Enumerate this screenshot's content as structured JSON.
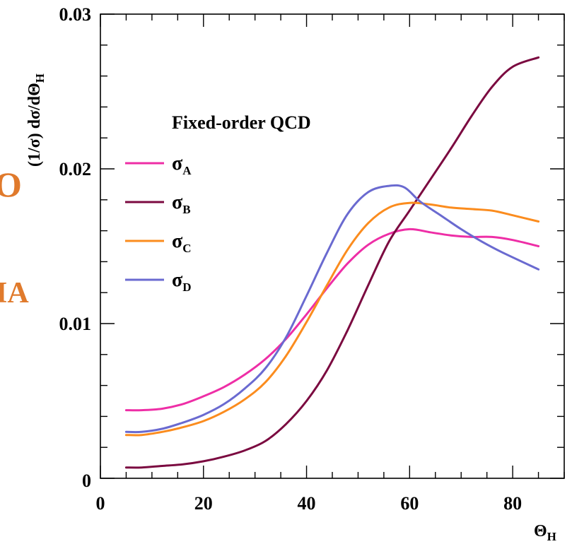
{
  "chart_data": {
    "type": "line",
    "title": "",
    "xlabel": {
      "main": "Θ",
      "sub": "H"
    },
    "ylabel": {
      "main": "(1/σ) dσ/dΘ",
      "sub": "H"
    },
    "xlim": [
      0,
      90
    ],
    "ylim": [
      0,
      0.03
    ],
    "x_ticks": [
      {
        "value": 0,
        "label": "0"
      },
      {
        "value": 20,
        "label": "20"
      },
      {
        "value": 40,
        "label": "40"
      },
      {
        "value": 60,
        "label": "60"
      },
      {
        "value": 80,
        "label": "80"
      }
    ],
    "y_ticks": [
      {
        "value": 0,
        "label": "0"
      },
      {
        "value": 0.01,
        "label": "0.01"
      },
      {
        "value": 0.02,
        "label": "0.02"
      },
      {
        "value": 0.03,
        "label": "0.03"
      }
    ],
    "grid": false,
    "legend": {
      "title": "Fixed-order QCD",
      "placement": "upper-left"
    },
    "series": [
      {
        "name": "σ",
        "sub": "A",
        "color": "#ee2ea6",
        "x": [
          5,
          8,
          12,
          16,
          20,
          24,
          28,
          32,
          36,
          40,
          44,
          48,
          52,
          56,
          60,
          64,
          68,
          72,
          76,
          80,
          85
        ],
        "y": [
          0.0044,
          0.0044,
          0.0045,
          0.0048,
          0.0053,
          0.0059,
          0.0067,
          0.0077,
          0.009,
          0.0106,
          0.0123,
          0.0139,
          0.0151,
          0.0158,
          0.0161,
          0.0159,
          0.0157,
          0.0156,
          0.0156,
          0.0154,
          0.015
        ]
      },
      {
        "name": "σ",
        "sub": "B",
        "color": "#7b0a40",
        "x": [
          5,
          8,
          12,
          16,
          20,
          24,
          28,
          32,
          36,
          40,
          44,
          48,
          52,
          56,
          60,
          64,
          68,
          72,
          76,
          80,
          85
        ],
        "y": [
          0.0007,
          0.0007,
          0.0008,
          0.0009,
          0.0011,
          0.0014,
          0.0018,
          0.0024,
          0.0035,
          0.005,
          0.007,
          0.0096,
          0.0125,
          0.0153,
          0.0173,
          0.0193,
          0.0213,
          0.0234,
          0.0253,
          0.0266,
          0.0272
        ]
      },
      {
        "name": "σ",
        "sub": "C",
        "color": "#fb8c1e",
        "x": [
          5,
          8,
          12,
          16,
          20,
          24,
          28,
          32,
          36,
          40,
          44,
          48,
          52,
          56,
          60,
          64,
          68,
          72,
          76,
          80,
          85
        ],
        "y": [
          0.0028,
          0.0028,
          0.003,
          0.0033,
          0.0037,
          0.0043,
          0.0051,
          0.0062,
          0.0079,
          0.0101,
          0.0125,
          0.0148,
          0.0165,
          0.0175,
          0.0178,
          0.0177,
          0.0175,
          0.0174,
          0.0173,
          0.017,
          0.0166
        ]
      },
      {
        "name": "σ",
        "sub": "D",
        "color": "#6a6ad0",
        "x": [
          5,
          8,
          12,
          16,
          20,
          24,
          28,
          32,
          36,
          40,
          44,
          48,
          52,
          56,
          59,
          62,
          66,
          70,
          74,
          78,
          85
        ],
        "y": [
          0.003,
          0.003,
          0.0032,
          0.0036,
          0.0041,
          0.0048,
          0.0058,
          0.0071,
          0.0091,
          0.0118,
          0.0146,
          0.0171,
          0.0185,
          0.0189,
          0.0188,
          0.0179,
          0.017,
          0.0161,
          0.0153,
          0.0146,
          0.0135
        ]
      }
    ]
  },
  "fragments": {
    "left_upper": "O",
    "left_lower": "IA"
  }
}
